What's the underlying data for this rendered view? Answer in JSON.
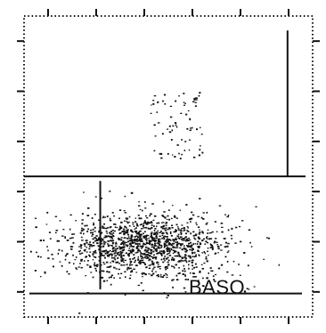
{
  "chart_data": {
    "type": "scatter",
    "title": "",
    "xlabel": "",
    "ylabel": "",
    "xlim": [
      0,
      1
    ],
    "ylim": [
      0,
      1
    ],
    "x_ticks": 6,
    "y_ticks": 6,
    "grid": false,
    "legend": "none",
    "colors": {
      "dots": "#111111",
      "frame": "#111111",
      "background": "#ffffff"
    },
    "gates": {
      "upper_horizontal_y": 0.467,
      "lower_horizontal_y": 0.078,
      "right_vertical_x": 0.913,
      "right_vertical_ymin": 0.467,
      "right_vertical_ymax": 0.952,
      "left_vertical_x": 0.264,
      "left_vertical_ymin": 0.092,
      "left_vertical_ymax": 0.452
    },
    "gate_label": "BASO",
    "clusters": [
      {
        "name": "",
        "center": [
          0.42,
          0.24
        ],
        "spread": [
          0.14,
          0.055
        ],
        "count": 1300,
        "distribution": "gaussian"
      },
      {
        "name": "",
        "center": [
          0.53,
          0.636
        ],
        "spread": [
          0.09,
          0.11
        ],
        "count": 75,
        "distribution": "uniform"
      },
      {
        "name": "",
        "center": [
          0.5,
          0.13
        ],
        "spread": [
          0.3,
          0.05
        ],
        "count": 40,
        "distribution": "uniform"
      }
    ]
  }
}
